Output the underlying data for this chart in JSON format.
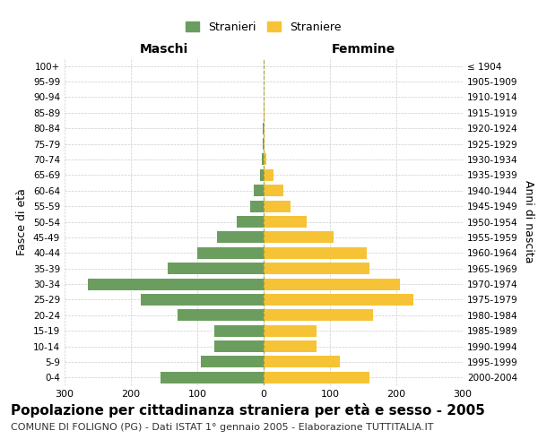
{
  "age_groups": [
    "100+",
    "95-99",
    "90-94",
    "85-89",
    "80-84",
    "75-79",
    "70-74",
    "65-69",
    "60-64",
    "55-59",
    "50-54",
    "45-49",
    "40-44",
    "35-39",
    "30-34",
    "25-29",
    "20-24",
    "15-19",
    "10-14",
    "5-9",
    "0-4"
  ],
  "birth_years": [
    "≤ 1904",
    "1905-1909",
    "1910-1914",
    "1915-1919",
    "1920-1924",
    "1925-1929",
    "1930-1934",
    "1935-1939",
    "1940-1944",
    "1945-1949",
    "1950-1954",
    "1955-1959",
    "1960-1964",
    "1965-1969",
    "1970-1974",
    "1975-1979",
    "1980-1984",
    "1985-1989",
    "1990-1994",
    "1995-1999",
    "2000-2004"
  ],
  "maschi": [
    0,
    0,
    0,
    0,
    1,
    1,
    3,
    5,
    15,
    20,
    40,
    70,
    100,
    145,
    265,
    185,
    130,
    75,
    75,
    95,
    155
  ],
  "femmine": [
    0,
    0,
    0,
    1,
    2,
    2,
    4,
    15,
    30,
    40,
    65,
    105,
    155,
    160,
    205,
    225,
    165,
    80,
    80,
    115,
    160
  ],
  "maschi_color": "#6b9e5e",
  "femmine_color": "#f5c335",
  "center_line_color": "#a0a040",
  "grid_color": "#cccccc",
  "background_color": "#ffffff",
  "title": "Popolazione per cittadinanza straniera per età e sesso - 2005",
  "subtitle": "COMUNE DI FOLIGNO (PG) - Dati ISTAT 1° gennaio 2005 - Elaborazione TUTTITALIA.IT",
  "ylabel_left": "Fasce di età",
  "ylabel_right": "Anni di nascita",
  "xlabel_left": "Maschi",
  "xlabel_right": "Femmine",
  "legend_maschi": "Stranieri",
  "legend_femmine": "Straniere",
  "xlim": 300,
  "title_fontsize": 11,
  "subtitle_fontsize": 8,
  "bar_height": 0.75
}
